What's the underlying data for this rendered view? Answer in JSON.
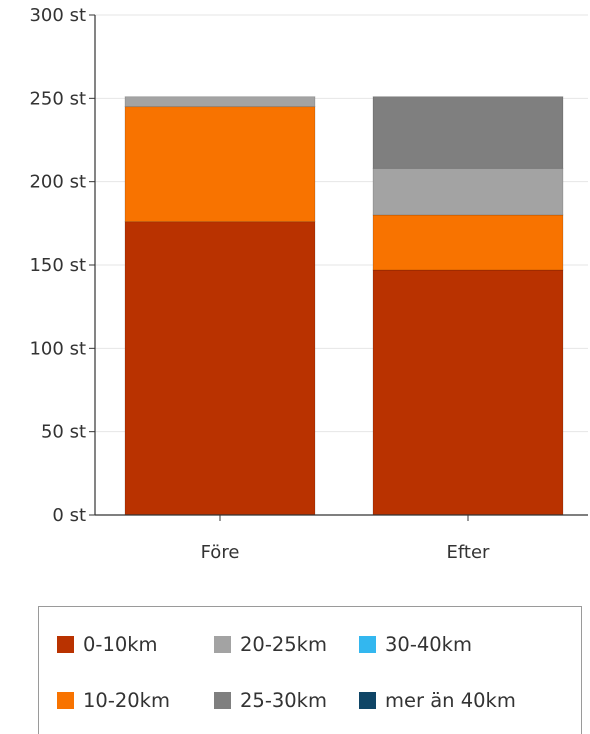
{
  "chart_data": {
    "type": "bar",
    "stacked": true,
    "categories": [
      "Före",
      "Efter"
    ],
    "series": [
      {
        "name": "0-10km",
        "color": "#b93200",
        "values": [
          176,
          147
        ]
      },
      {
        "name": "10-20km",
        "color": "#f87300",
        "values": [
          69,
          33
        ]
      },
      {
        "name": "20-25km",
        "color": "#a3a3a3",
        "values": [
          6,
          28
        ]
      },
      {
        "name": "25-30km",
        "color": "#7f7f7f",
        "values": [
          0,
          43
        ]
      },
      {
        "name": "30-40km",
        "color": "#33b7ef",
        "values": [
          0,
          0
        ]
      },
      {
        "name": "mer än 40km",
        "color": "#0f4566",
        "values": [
          0,
          0
        ]
      }
    ],
    "y_ticks": [
      {
        "value": 0,
        "label": "0 st"
      },
      {
        "value": 50,
        "label": "50 st"
      },
      {
        "value": 100,
        "label": "100 st"
      },
      {
        "value": 150,
        "label": "150 st"
      },
      {
        "value": 200,
        "label": "200 st"
      },
      {
        "value": 250,
        "label": "250 st"
      },
      {
        "value": 300,
        "label": "300 st"
      }
    ],
    "ylim": [
      0,
      300
    ],
    "grid": true,
    "legend_position": "bottom",
    "title": "",
    "xlabel": "",
    "ylabel": ""
  }
}
